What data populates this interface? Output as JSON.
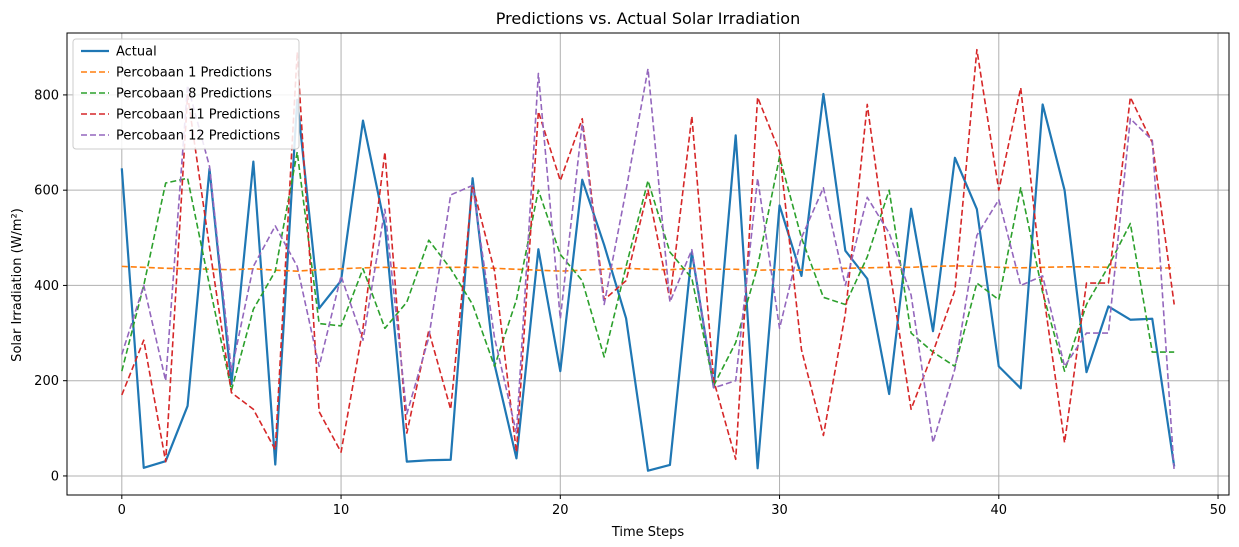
{
  "chart_data": {
    "type": "line",
    "title": "Predictions vs. Actual Solar Irradiation",
    "xlabel": "Time Steps",
    "ylabel": "Solar Irradiation (W/m²)",
    "xlim": [
      -2.5,
      50.5
    ],
    "ylim": [
      -40,
      930
    ],
    "xticks": [
      0,
      10,
      20,
      30,
      40,
      50
    ],
    "yticks": [
      0,
      200,
      400,
      600,
      800
    ],
    "grid": true,
    "legend_position": "top-left",
    "series": [
      {
        "name": "Actual",
        "color": "#1f77b4",
        "style": "solid",
        "values": [
          646,
          17,
          31,
          147,
          645,
          193,
          660,
          24,
          790,
          352,
          410,
          746,
          525,
          30,
          33,
          34,
          625,
          234,
          37,
          476,
          220,
          622,
          485,
          331,
          11,
          23,
          470,
          186,
          715,
          16,
          568,
          420,
          802,
          473,
          414,
          172,
          561,
          304,
          668,
          560,
          230,
          184,
          780,
          600,
          218,
          356,
          328,
          330,
          20
        ]
      },
      {
        "name": "Percobaan 1 Predictions",
        "color": "#ff7f0e",
        "style": "dashed",
        "values": [
          440,
          438,
          436,
          435,
          434,
          433,
          435,
          432,
          430,
          433,
          435,
          437,
          438,
          436,
          437,
          438,
          438,
          436,
          434,
          432,
          430,
          432,
          434,
          436,
          434,
          433,
          436,
          434,
          434,
          432,
          433,
          432,
          434,
          436,
          437,
          438,
          438,
          440,
          441,
          440,
          438,
          437,
          438,
          439,
          439,
          438,
          437,
          436,
          437
        ]
      },
      {
        "name": "Percobaan 8 Predictions",
        "color": "#2ca02c",
        "style": "dashed",
        "values": [
          220,
          400,
          615,
          625,
          400,
          180,
          350,
          430,
          680,
          320,
          315,
          435,
          310,
          365,
          495,
          435,
          360,
          230,
          370,
          600,
          465,
          410,
          250,
          440,
          620,
          470,
          415,
          190,
          280,
          440,
          670,
          500,
          375,
          360,
          460,
          600,
          300,
          260,
          230,
          405,
          370,
          605,
          385,
          220,
          360,
          440,
          530,
          260,
          260
        ]
      },
      {
        "name": "Percobaan 11 Predictions",
        "color": "#d62728",
        "style": "dashed",
        "values": [
          170,
          285,
          30,
          800,
          480,
          175,
          140,
          55,
          890,
          135,
          50,
          310,
          680,
          90,
          305,
          140,
          610,
          430,
          50,
          765,
          620,
          750,
          370,
          410,
          600,
          370,
          755,
          200,
          35,
          795,
          680,
          265,
          85,
          340,
          780,
          440,
          140,
          260,
          390,
          895,
          600,
          815,
          395,
          70,
          405,
          405,
          795,
          700,
          360
        ]
      },
      {
        "name": "Percobaan 12 Predictions",
        "color": "#9467bd",
        "style": "dashed",
        "values": [
          255,
          400,
          200,
          820,
          650,
          220,
          440,
          525,
          440,
          230,
          420,
          285,
          560,
          130,
          290,
          590,
          610,
          290,
          90,
          845,
          330,
          740,
          360,
          600,
          855,
          365,
          475,
          185,
          200,
          625,
          310,
          500,
          605,
          400,
          585,
          510,
          380,
          70,
          225,
          505,
          580,
          400,
          420,
          230,
          300,
          300,
          750,
          705,
          10
        ]
      }
    ]
  }
}
